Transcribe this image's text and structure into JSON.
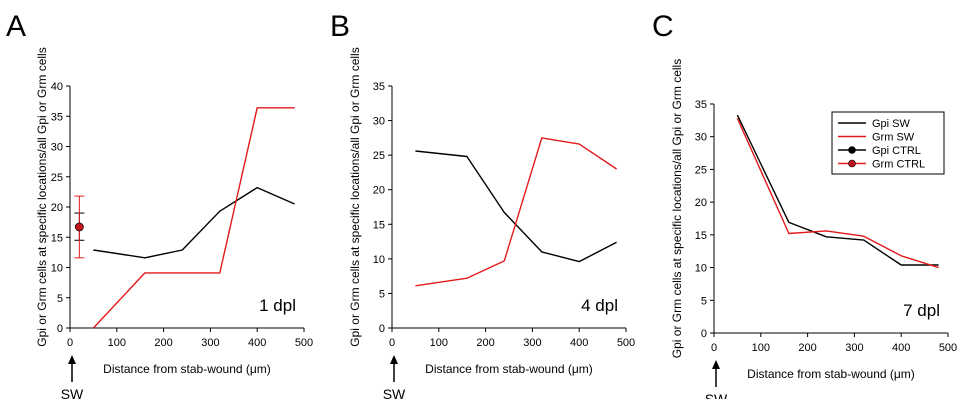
{
  "colors": {
    "gpi": "#000000",
    "grm": "#e31a1c",
    "ctrl_fill": "#c0141c"
  },
  "legend": [
    "Gpi SW",
    "Grm SW",
    "Gpi CTRL",
    "Grm CTRL"
  ],
  "arrow_label": "SW",
  "chart_data": [
    {
      "panel": "A",
      "type": "line",
      "annotation": "1 dpl",
      "xlabel": "Distance from stab-wound (μm)",
      "ylabel": "Gpi or Grm cells at specific locations/all Gpi or Grm cells",
      "xlim": [
        0,
        500
      ],
      "ylim": [
        0,
        40
      ],
      "xticks": [
        0,
        100,
        200,
        300,
        400,
        500
      ],
      "yticks": [
        0,
        5,
        10,
        15,
        20,
        25,
        30,
        35,
        40
      ],
      "series": [
        {
          "name": "Gpi SW",
          "color": "#000000",
          "x": [
            50,
            160,
            240,
            320,
            400,
            480
          ],
          "y": [
            12.9,
            11.6,
            12.9,
            19.3,
            23.2,
            20.5
          ]
        },
        {
          "name": "Grm SW",
          "color": "#e31a1c",
          "x": [
            50,
            160,
            240,
            320,
            400,
            480
          ],
          "y": [
            0,
            9.1,
            9.1,
            9.1,
            36.4,
            36.4
          ]
        }
      ],
      "ctrl_points": [
        {
          "name": "Gpi CTRL",
          "x": 20,
          "y": 16.7,
          "err": [
            14.5,
            19.0
          ]
        },
        {
          "name": "Grm CTRL",
          "x": 20,
          "y": 16.7,
          "err": [
            11.6,
            21.8
          ]
        }
      ],
      "has_legend": false
    },
    {
      "panel": "B",
      "type": "line",
      "annotation": "4 dpl",
      "xlabel": "Distance from stab-wound (μm)",
      "ylabel": "Gpi or Grm cells at specific locations/all Gpi or Grm cells",
      "xlim": [
        0,
        500
      ],
      "ylim": [
        0,
        35
      ],
      "xticks": [
        0,
        100,
        200,
        300,
        400,
        500
      ],
      "yticks": [
        0,
        5,
        10,
        15,
        20,
        25,
        30,
        35
      ],
      "series": [
        {
          "name": "Gpi SW",
          "color": "#000000",
          "x": [
            50,
            160,
            240,
            320,
            400,
            480
          ],
          "y": [
            25.6,
            24.8,
            16.7,
            11.0,
            9.6,
            12.4
          ]
        },
        {
          "name": "Grm SW",
          "color": "#e31a1c",
          "x": [
            50,
            160,
            240,
            320,
            400,
            480
          ],
          "y": [
            6.1,
            7.2,
            9.7,
            27.5,
            26.6,
            23.0
          ]
        }
      ],
      "ctrl_points": [],
      "has_legend": false
    },
    {
      "panel": "C",
      "type": "line",
      "annotation": "7 dpl",
      "xlabel": "Distance from stab-wound (μm)",
      "ylabel": "Gpi or Grm cells at specific locations/all Gpi or Grm cells",
      "xlim": [
        0,
        500
      ],
      "ylim": [
        0,
        35
      ],
      "xticks": [
        0,
        100,
        200,
        300,
        400,
        500
      ],
      "yticks": [
        0,
        5,
        10,
        15,
        20,
        25,
        30,
        35
      ],
      "series": [
        {
          "name": "Gpi SW",
          "color": "#000000",
          "x": [
            50,
            160,
            240,
            320,
            400,
            480
          ],
          "y": [
            33.3,
            16.9,
            14.7,
            14.2,
            10.4,
            10.4
          ]
        },
        {
          "name": "Grm SW",
          "color": "#e31a1c",
          "x": [
            50,
            160,
            240,
            320,
            400,
            480
          ],
          "y": [
            32.8,
            15.2,
            15.6,
            14.8,
            11.8,
            10.0
          ]
        }
      ],
      "ctrl_points": [],
      "has_legend": true,
      "legend_position": "top-right"
    }
  ]
}
